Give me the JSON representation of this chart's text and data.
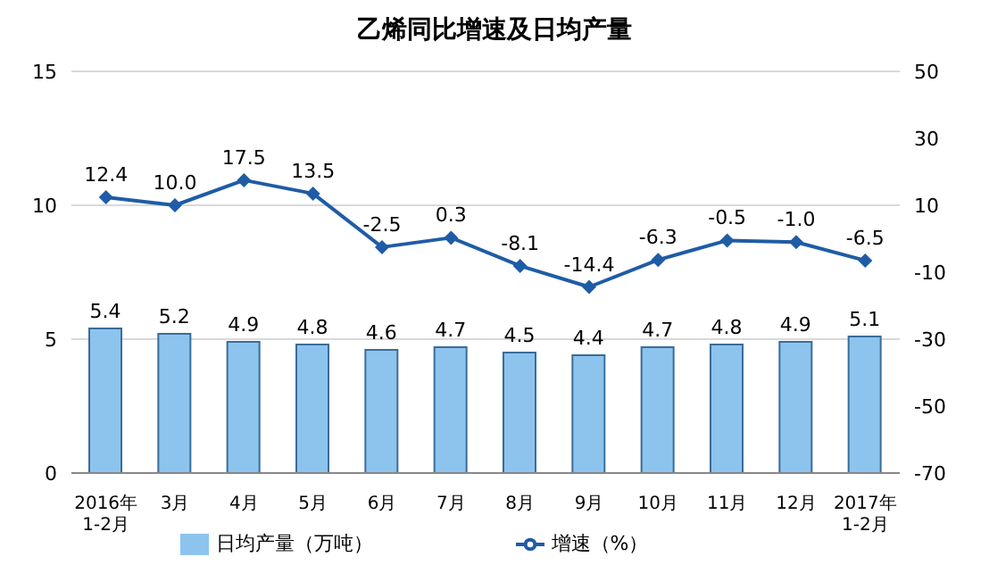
{
  "chart_data": {
    "type": "bar",
    "title": "乙烯同比增速及日均产量",
    "categories": [
      "2016年\n1-2月",
      "3月",
      "4月",
      "5月",
      "6月",
      "7月",
      "8月",
      "9月",
      "10月",
      "11月",
      "12月",
      "2017年\n1-2月"
    ],
    "series": [
      {
        "name": "日均产量（万吨）",
        "color": "#8dc4ee",
        "values": [
          5.4,
          5.2,
          4.9,
          4.8,
          4.6,
          4.7,
          4.5,
          4.4,
          4.7,
          4.8,
          4.9,
          5.1
        ],
        "value_labels": [
          "5.4",
          "5.2",
          "4.9",
          "4.8",
          "4.6",
          "4.7",
          "4.5",
          "4.4",
          "4.7",
          "4.8",
          "4.9",
          "5.1"
        ]
      },
      {
        "name": "增速（%）",
        "type": "line",
        "axis": "y2",
        "color": "#1f5ca6",
        "marker": "diamond",
        "values": [
          12.4,
          10.0,
          17.5,
          13.5,
          -2.5,
          0.3,
          -8.1,
          -14.4,
          -6.3,
          -0.5,
          -1.0,
          -6.5
        ],
        "value_labels": [
          "12.4",
          "10.0",
          "17.5",
          "13.5",
          "-2.5",
          "0.3",
          "-8.1",
          "-14.4",
          "-6.3",
          "-0.5",
          "-1.0",
          "-6.5"
        ]
      }
    ],
    "ylim": [
      0,
      15
    ],
    "yticks": [
      0,
      5,
      10,
      15
    ],
    "y2lim": [
      -70,
      50
    ],
    "y2ticks": [
      -70,
      -50,
      -30,
      -10,
      10,
      30,
      50
    ],
    "grid": "y",
    "legend": "bottom"
  }
}
